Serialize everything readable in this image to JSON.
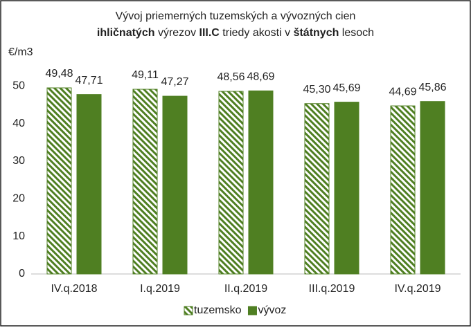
{
  "chart_data": {
    "type": "bar",
    "title_lines": [
      [
        {
          "text": "Vývoj priemerných tuzemských a vývozných cien",
          "bold": false
        }
      ],
      [
        {
          "text": "ihličnatých",
          "bold": true
        },
        {
          "text": " výrezov ",
          "bold": false
        },
        {
          "text": "III.C",
          "bold": true
        },
        {
          "text": " triedy akosti v ",
          "bold": false
        },
        {
          "text": "štátnych",
          "bold": true
        },
        {
          "text": " lesoch",
          "bold": false
        }
      ]
    ],
    "ylabel": "€/m3",
    "categories": [
      "IV.q.2018",
      "I.q.2019",
      "II.q.2019",
      "III.q.2019",
      "IV.q.2019"
    ],
    "series": [
      {
        "name": "tuzemsko",
        "color": "#4f7f22",
        "pattern": "hatch",
        "values": [
          49.48,
          49.11,
          48.56,
          45.3,
          44.69
        ],
        "value_labels": [
          "49,48",
          "49,11",
          "48,56",
          "45,30",
          "44,69"
        ]
      },
      {
        "name": "vývoz",
        "color": "#4f7f22",
        "pattern": "solid",
        "values": [
          47.71,
          47.27,
          48.69,
          45.69,
          45.86
        ],
        "value_labels": [
          "47,71",
          "47,27",
          "48,69",
          "45,69",
          "45,86"
        ]
      }
    ],
    "ylim": [
      0,
      55
    ],
    "yticks": [
      0,
      10,
      20,
      30,
      40,
      50
    ],
    "grid": false,
    "legend": "bottom"
  }
}
